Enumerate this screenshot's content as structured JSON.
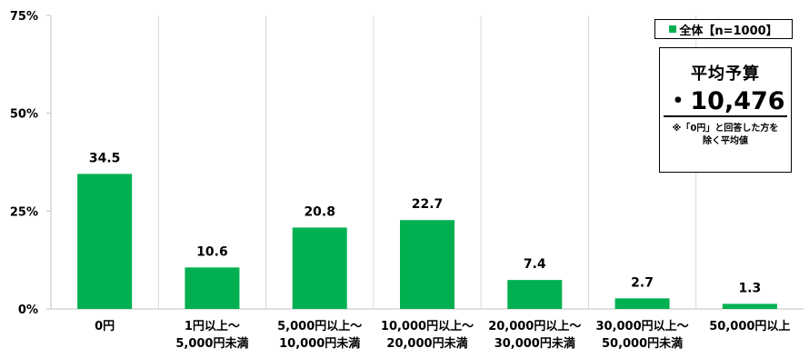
{
  "chart_data": {
    "type": "bar",
    "categories": [
      [
        "0円"
      ],
      [
        "1円以上～",
        "5,000円未満"
      ],
      [
        "5,000円以上～",
        "10,000円未満"
      ],
      [
        "10,000円以上～",
        "20,000円未満"
      ],
      [
        "20,000円以上～",
        "30,000円未満"
      ],
      [
        "30,000円以上～",
        "50,000円未満"
      ],
      [
        "50,000円以上"
      ]
    ],
    "series": [
      {
        "name": "全体【n=1000】",
        "values": [
          34.5,
          10.6,
          20.8,
          22.7,
          7.4,
          2.7,
          1.3
        ],
        "color": "#00b050"
      }
    ],
    "data_labels": [
      "34.5",
      "10.6",
      "20.8",
      "22.7",
      "7.4",
      "2.7",
      "1.3"
    ],
    "ylim": [
      0,
      75
    ],
    "yticks": [
      0,
      25,
      50,
      75
    ],
    "ytick_labels": [
      "0%",
      "25%",
      "50%",
      "75%"
    ],
    "legend": "top-right",
    "grid": "vertical category separators"
  },
  "legend": {
    "label": "全体【n=1000】"
  },
  "budget_box": {
    "title": "平均予算",
    "value": "・10,476",
    "note_line1": "※「0円」と回答した方を",
    "note_line2": "除く平均値"
  }
}
